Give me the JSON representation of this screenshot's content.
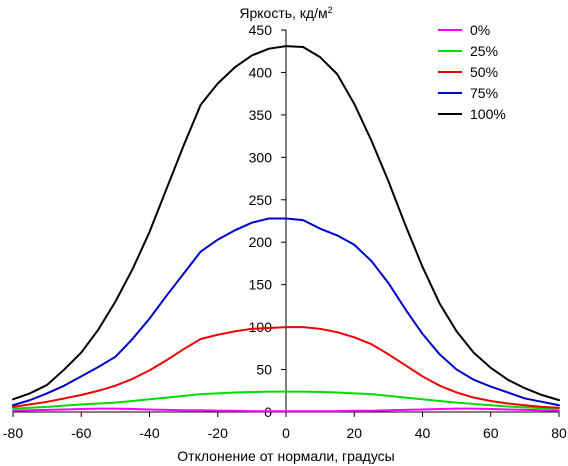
{
  "chart_data": {
    "type": "line",
    "title": "Яркость, кд/м",
    "title_superscript": "2",
    "xlabel": "Отклонение от нормали, градусы",
    "ylabel": "",
    "xlim": [
      -80,
      80
    ],
    "ylim": [
      0,
      450
    ],
    "xticks": [
      -80,
      -60,
      -40,
      -20,
      0,
      20,
      40,
      60,
      80
    ],
    "yticks": [
      0,
      50,
      100,
      150,
      200,
      250,
      300,
      350,
      400,
      450
    ],
    "grid": false,
    "legend_position": "top-right",
    "x": [
      -80,
      -75,
      -70,
      -65,
      -60,
      -55,
      -50,
      -45,
      -40,
      -35,
      -30,
      -25,
      -20,
      -15,
      -10,
      -5,
      0,
      5,
      10,
      15,
      20,
      25,
      30,
      35,
      40,
      45,
      50,
      55,
      60,
      65,
      70,
      75,
      80
    ],
    "series": [
      {
        "name": "0%",
        "color": "#ff00ff",
        "values": [
          1.5,
          2,
          2.5,
          3,
          3.5,
          4,
          4,
          3.5,
          3,
          2.5,
          2,
          2,
          1.5,
          1.5,
          1,
          1,
          1,
          1,
          1,
          1,
          1.5,
          1.5,
          2,
          2.5,
          3,
          3.5,
          4,
          4,
          3.5,
          3,
          2.5,
          2,
          1.5
        ]
      },
      {
        "name": "25%",
        "color": "#00dd00",
        "values": [
          4,
          5,
          6,
          7.5,
          9,
          10,
          11,
          13,
          15,
          17,
          19,
          21,
          22,
          23,
          23.5,
          24,
          24,
          24,
          23.5,
          23,
          22,
          21,
          19,
          17,
          15,
          13,
          11,
          9.5,
          8,
          6.5,
          5.5,
          4.5,
          4
        ]
      },
      {
        "name": "50%",
        "color": "#ee0000",
        "values": [
          6,
          9,
          12,
          16,
          20,
          25,
          31,
          39,
          49,
          61,
          74,
          86,
          91,
          95,
          98,
          99,
          100,
          100,
          98,
          94,
          88,
          80,
          68,
          55,
          42,
          31,
          23,
          17,
          13,
          10,
          8,
          6,
          5
        ]
      },
      {
        "name": "75%",
        "color": "#0000cc",
        "values": [
          8,
          14,
          22,
          31,
          42,
          53,
          65,
          86,
          110,
          137,
          163,
          189,
          203,
          214,
          223,
          228,
          228,
          226,
          216,
          208,
          197,
          178,
          152,
          121,
          92,
          68,
          50,
          38,
          30,
          23,
          16,
          12,
          8
        ]
      },
      {
        "name": "100%",
        "color": "#000000",
        "values": [
          15,
          22,
          32,
          50,
          70,
          97,
          130,
          168,
          212,
          263,
          314,
          362,
          387,
          406,
          420,
          428,
          431,
          430,
          418,
          398,
          363,
          320,
          272,
          220,
          171,
          128,
          95,
          70,
          52,
          38,
          28,
          20,
          14
        ]
      }
    ]
  }
}
